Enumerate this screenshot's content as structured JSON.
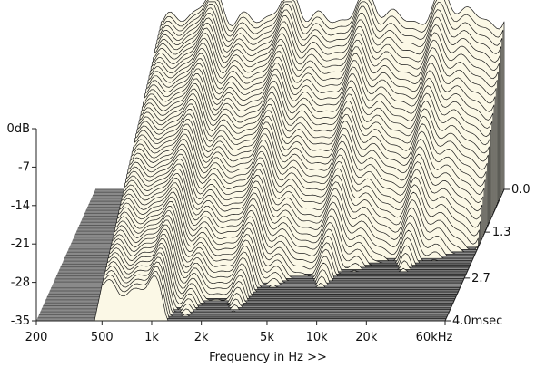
{
  "chart_data": {
    "type": "waterfall",
    "xlabel": "Frequency in Hz >>",
    "x_ticks": [
      "200",
      "500",
      "1k",
      "2k",
      "5k",
      "10k",
      "20k",
      "60kHz"
    ],
    "x_tick_values": [
      200,
      500,
      1000,
      2000,
      5000,
      10000,
      20000,
      60000
    ],
    "xlim": [
      200,
      60000
    ],
    "x_scale": "log",
    "y_ticks": [
      "0dB",
      "-7",
      "-14",
      "-21",
      "-28",
      "-35"
    ],
    "y_tick_values": [
      0,
      -7,
      -14,
      -21,
      -28,
      -35
    ],
    "ylim": [
      -35,
      0
    ],
    "z_ticks": [
      "0.0",
      "1.3",
      "2.7",
      "4.0msec"
    ],
    "z_tick_values": [
      0.0,
      1.3,
      2.7,
      4.0
    ],
    "zlim": [
      0,
      4.0
    ],
    "slice_count": 60,
    "colors": {
      "surface": "#fbf8e6",
      "line": "#1a1a1a",
      "floor": "#8a8a8a",
      "floor_stripe": "#5a5a5a"
    }
  }
}
